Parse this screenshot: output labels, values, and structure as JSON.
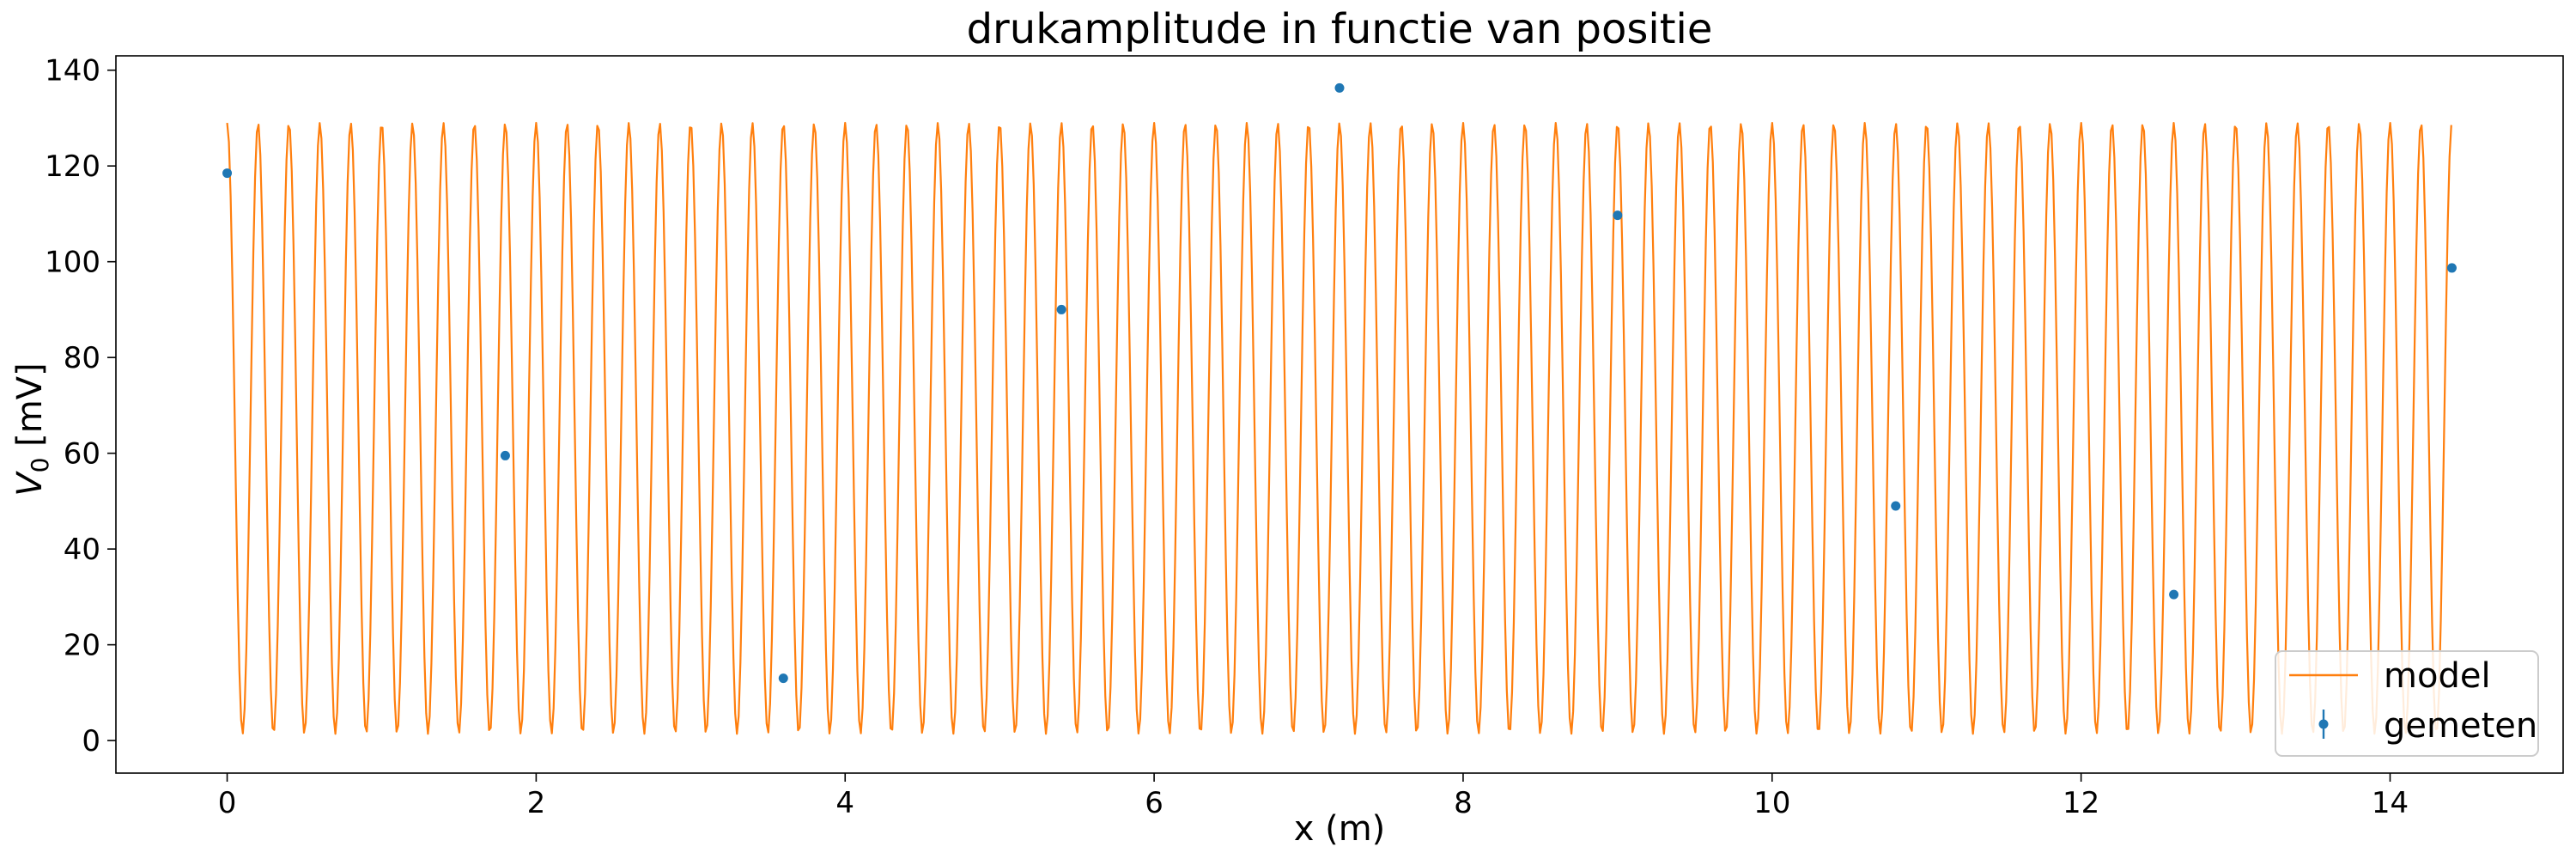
{
  "chart_data": {
    "type": "line",
    "title": "drukamplitude in functie van positie",
    "xlabel": "x (m)",
    "ylabel_main": "V",
    "ylabel_sub": "0",
    "ylabel_unit": " [mV]",
    "xlim": [
      -0.72,
      15.12
    ],
    "ylim": [
      -6.8,
      143.0
    ],
    "xticks": [
      0,
      2,
      4,
      6,
      8,
      10,
      12,
      14
    ],
    "yticks": [
      0,
      20,
      40,
      60,
      80,
      100,
      120,
      140
    ],
    "xtick_labels": [
      "0",
      "2",
      "4",
      "6",
      "8",
      "10",
      "12",
      "14"
    ],
    "ytick_labels": [
      "0",
      "20",
      "40",
      "60",
      "80",
      "100",
      "120",
      "140"
    ],
    "grid": false,
    "legend_position": "lower-right",
    "series": [
      {
        "name": "model",
        "kind": "line",
        "color": "#ff7f0e",
        "model": {
          "x_start": 0.0,
          "x_end": 14.4,
          "mean": 65.2,
          "amplitude": 63.8,
          "wavelength": 0.2,
          "sample_step": 0.0113
        }
      },
      {
        "name": "gemeten",
        "kind": "errorbar",
        "color": "#1f77b4",
        "x": [
          0.0,
          1.8,
          3.6,
          5.4,
          7.2,
          9.0,
          10.8,
          12.6,
          14.4
        ],
        "y": [
          118.5,
          59.5,
          13.0,
          90.0,
          136.3,
          109.7,
          49.0,
          30.5,
          98.7
        ],
        "yerr": [
          0.6,
          0.6,
          0.6,
          0.6,
          0.6,
          0.6,
          0.6,
          0.6,
          0.6
        ]
      }
    ]
  }
}
